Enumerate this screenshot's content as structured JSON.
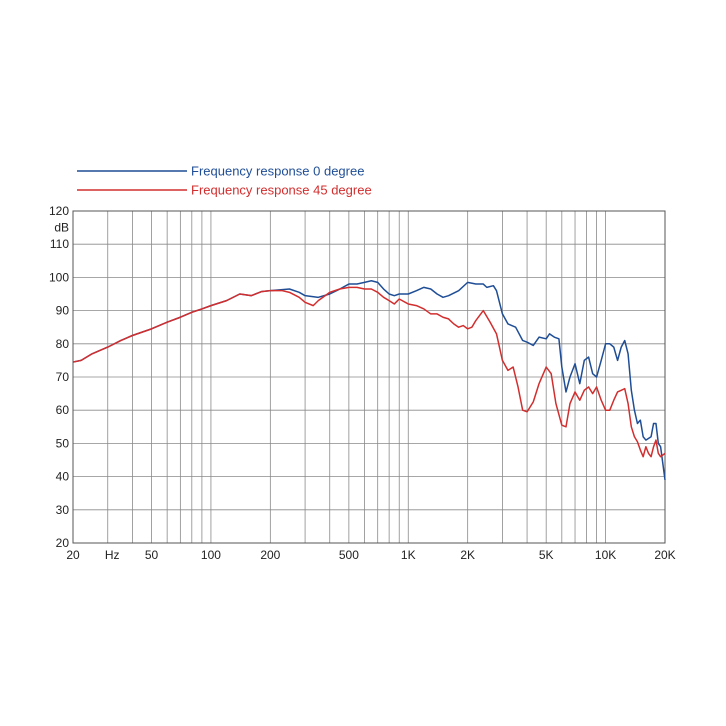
{
  "chart_data": {
    "type": "line",
    "x_scale": "log",
    "xlim": [
      20,
      20000
    ],
    "ylim": [
      20,
      120
    ],
    "ylabel": "dB",
    "x_unit_label": "Hz",
    "x_ticks": [
      {
        "value": 20,
        "label": "20"
      },
      {
        "value": 50,
        "label": "50"
      },
      {
        "value": 100,
        "label": "100"
      },
      {
        "value": 200,
        "label": "200"
      },
      {
        "value": 500,
        "label": "500"
      },
      {
        "value": 1000,
        "label": "1K"
      },
      {
        "value": 2000,
        "label": "2K"
      },
      {
        "value": 5000,
        "label": "5K"
      },
      {
        "value": 10000,
        "label": "10K"
      },
      {
        "value": 20000,
        "label": "20K"
      }
    ],
    "y_ticks": [
      20,
      30,
      40,
      50,
      60,
      70,
      80,
      90,
      100,
      110,
      120
    ],
    "grid": true,
    "legend_position": "top-left, above plot",
    "series": [
      {
        "name": "Frequency response 0 degree",
        "color": "#1f4e96",
        "points": [
          [
            20,
            74.5
          ],
          [
            22,
            75
          ],
          [
            25,
            77
          ],
          [
            30,
            79
          ],
          [
            35,
            81
          ],
          [
            40,
            82.5
          ],
          [
            50,
            84.5
          ],
          [
            60,
            86.5
          ],
          [
            70,
            88
          ],
          [
            80,
            89.5
          ],
          [
            90,
            90.5
          ],
          [
            100,
            91.5
          ],
          [
            120,
            93
          ],
          [
            140,
            95
          ],
          [
            160,
            94.5
          ],
          [
            180,
            95.7
          ],
          [
            200,
            96
          ],
          [
            230,
            96.3
          ],
          [
            250,
            96.5
          ],
          [
            280,
            95.5
          ],
          [
            300,
            94.5
          ],
          [
            350,
            94
          ],
          [
            400,
            95
          ],
          [
            450,
            96.5
          ],
          [
            500,
            98
          ],
          [
            550,
            98
          ],
          [
            600,
            98.5
          ],
          [
            650,
            99
          ],
          [
            700,
            98.5
          ],
          [
            750,
            96.5
          ],
          [
            800,
            95
          ],
          [
            850,
            94.5
          ],
          [
            900,
            95
          ],
          [
            1000,
            95
          ],
          [
            1100,
            96
          ],
          [
            1200,
            97
          ],
          [
            1300,
            96.5
          ],
          [
            1400,
            95
          ],
          [
            1500,
            94
          ],
          [
            1600,
            94.5
          ],
          [
            1800,
            96
          ],
          [
            2000,
            98.5
          ],
          [
            2200,
            98
          ],
          [
            2400,
            98
          ],
          [
            2500,
            97
          ],
          [
            2700,
            97.5
          ],
          [
            2800,
            96
          ],
          [
            3000,
            89
          ],
          [
            3200,
            86
          ],
          [
            3500,
            85
          ],
          [
            3800,
            81
          ],
          [
            4000,
            80.5
          ],
          [
            4300,
            79.5
          ],
          [
            4600,
            82
          ],
          [
            5000,
            81.5
          ],
          [
            5200,
            83
          ],
          [
            5500,
            82
          ],
          [
            5800,
            81.5
          ],
          [
            6000,
            73
          ],
          [
            6300,
            65.5
          ],
          [
            6600,
            70
          ],
          [
            7000,
            74
          ],
          [
            7400,
            68
          ],
          [
            7800,
            75
          ],
          [
            8200,
            76
          ],
          [
            8600,
            71
          ],
          [
            9000,
            70
          ],
          [
            9500,
            75
          ],
          [
            10000,
            80
          ],
          [
            10500,
            80
          ],
          [
            11000,
            79
          ],
          [
            11500,
            75
          ],
          [
            12000,
            79
          ],
          [
            12500,
            81
          ],
          [
            13000,
            77
          ],
          [
            13500,
            66
          ],
          [
            14000,
            60
          ],
          [
            14500,
            56
          ],
          [
            15000,
            57
          ],
          [
            15500,
            52
          ],
          [
            16000,
            51
          ],
          [
            17000,
            52
          ],
          [
            17500,
            56
          ],
          [
            18000,
            56
          ],
          [
            18500,
            50
          ],
          [
            19000,
            49
          ],
          [
            20000,
            39
          ]
        ]
      },
      {
        "name": "Frequency response 45 degree",
        "color": "#d22e2e",
        "points": [
          [
            20,
            74.5
          ],
          [
            22,
            75
          ],
          [
            25,
            77
          ],
          [
            30,
            79
          ],
          [
            35,
            81
          ],
          [
            40,
            82.5
          ],
          [
            50,
            84.5
          ],
          [
            60,
            86.5
          ],
          [
            70,
            88
          ],
          [
            80,
            89.5
          ],
          [
            90,
            90.5
          ],
          [
            100,
            91.5
          ],
          [
            120,
            93
          ],
          [
            140,
            95
          ],
          [
            160,
            94.5
          ],
          [
            180,
            95.7
          ],
          [
            200,
            96
          ],
          [
            230,
            96
          ],
          [
            250,
            95.5
          ],
          [
            280,
            94
          ],
          [
            300,
            92.5
          ],
          [
            330,
            91.5
          ],
          [
            350,
            93
          ],
          [
            400,
            95.5
          ],
          [
            450,
            96.5
          ],
          [
            500,
            97
          ],
          [
            550,
            97
          ],
          [
            600,
            96.5
          ],
          [
            650,
            96.5
          ],
          [
            700,
            95.5
          ],
          [
            750,
            94
          ],
          [
            800,
            93
          ],
          [
            850,
            92
          ],
          [
            900,
            93.5
          ],
          [
            1000,
            92
          ],
          [
            1100,
            91.5
          ],
          [
            1200,
            90.5
          ],
          [
            1300,
            89
          ],
          [
            1400,
            89
          ],
          [
            1500,
            88
          ],
          [
            1600,
            87.5
          ],
          [
            1700,
            86
          ],
          [
            1800,
            85
          ],
          [
            1900,
            85.5
          ],
          [
            2000,
            84.5
          ],
          [
            2100,
            85
          ],
          [
            2200,
            87
          ],
          [
            2400,
            90
          ],
          [
            2600,
            86.5
          ],
          [
            2800,
            83
          ],
          [
            3000,
            75
          ],
          [
            3200,
            72
          ],
          [
            3400,
            73
          ],
          [
            3600,
            67
          ],
          [
            3800,
            60
          ],
          [
            4000,
            59.5
          ],
          [
            4300,
            62.5
          ],
          [
            4600,
            68
          ],
          [
            5000,
            73
          ],
          [
            5300,
            71
          ],
          [
            5600,
            62
          ],
          [
            6000,
            55.5
          ],
          [
            6300,
            55
          ],
          [
            6600,
            62
          ],
          [
            7000,
            65.5
          ],
          [
            7400,
            63
          ],
          [
            7800,
            66
          ],
          [
            8200,
            67
          ],
          [
            8600,
            65
          ],
          [
            9000,
            67
          ],
          [
            9500,
            63
          ],
          [
            10000,
            60
          ],
          [
            10500,
            60
          ],
          [
            11000,
            63
          ],
          [
            11500,
            65.5
          ],
          [
            12000,
            66
          ],
          [
            12500,
            66.5
          ],
          [
            13000,
            62
          ],
          [
            13500,
            55
          ],
          [
            14000,
            52
          ],
          [
            14500,
            50.5
          ],
          [
            15000,
            48
          ],
          [
            15500,
            46
          ],
          [
            16000,
            49
          ],
          [
            16500,
            47
          ],
          [
            17000,
            46
          ],
          [
            17500,
            49
          ],
          [
            18000,
            51
          ],
          [
            18500,
            47
          ],
          [
            19000,
            46
          ],
          [
            20000,
            47
          ]
        ]
      }
    ]
  }
}
